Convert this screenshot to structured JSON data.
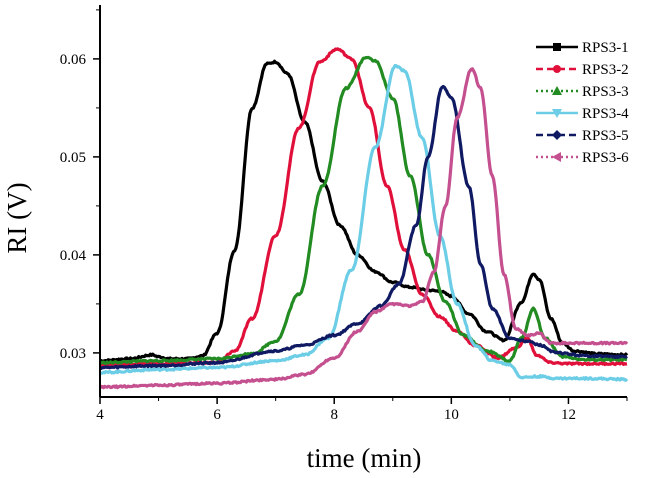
{
  "chart_data": {
    "type": "line",
    "title": "",
    "xlabel": "time (min)",
    "ylabel": "RI (V)",
    "xlim": [
      4,
      13
    ],
    "ylim": [
      0.0255,
      0.0655
    ],
    "xticks": [
      4,
      6,
      8,
      10,
      12
    ],
    "xtick_labels": [
      "4",
      "6",
      "8",
      "10",
      "12"
    ],
    "yticks": [
      0.03,
      0.04,
      0.05,
      0.06
    ],
    "ytick_labels": [
      "0.03",
      "0.04",
      "0.05",
      "0.06"
    ],
    "grid": false,
    "legend_position": "top-right",
    "series": [
      {
        "name": "RPS3-1",
        "color": "#000000",
        "dash": "solid",
        "marker": "square",
        "x": [
          4,
          4.5,
          4.9,
          5.0,
          5.2,
          5.5,
          5.75,
          6.0,
          6.3,
          6.6,
          6.85,
          7.0,
          7.2,
          7.5,
          7.8,
          8.1,
          8.4,
          8.7,
          9.0,
          9.3,
          9.6,
          9.8,
          10.0,
          10.3,
          10.6,
          10.9,
          11.2,
          11.4,
          11.5,
          11.7,
          11.9,
          12.1,
          12.5,
          13
        ],
        "y": [
          0.0292,
          0.0294,
          0.0298,
          0.0296,
          0.0294,
          0.0294,
          0.0297,
          0.032,
          0.0405,
          0.055,
          0.0595,
          0.0597,
          0.0585,
          0.0535,
          0.0475,
          0.043,
          0.04,
          0.0383,
          0.0372,
          0.0367,
          0.0364,
          0.0363,
          0.0358,
          0.034,
          0.0322,
          0.0313,
          0.0352,
          0.0381,
          0.0375,
          0.0335,
          0.031,
          0.0302,
          0.0299,
          0.0298
        ]
      },
      {
        "name": "RPS3-2",
        "color": "#e0103a",
        "dash": "dashed",
        "marker": "circle",
        "x": [
          4,
          5,
          6.0,
          6.3,
          6.6,
          7.0,
          7.4,
          7.75,
          8.05,
          8.3,
          8.6,
          8.9,
          9.2,
          9.5,
          9.8,
          10.1,
          10.4,
          10.8,
          11.1,
          11.3,
          11.45,
          11.7,
          12.0,
          12.5,
          13
        ],
        "y": [
          0.0288,
          0.0289,
          0.029,
          0.0302,
          0.0335,
          0.042,
          0.053,
          0.0597,
          0.061,
          0.06,
          0.055,
          0.047,
          0.0405,
          0.036,
          0.0337,
          0.0322,
          0.0308,
          0.0295,
          0.0305,
          0.0315,
          0.0298,
          0.029,
          0.0289,
          0.0289,
          0.0289
        ]
      },
      {
        "name": "RPS3-3",
        "color": "#228b22",
        "dash": "dotted",
        "marker": "triangle",
        "x": [
          4,
          5,
          6,
          6.6,
          7.0,
          7.4,
          7.8,
          8.2,
          8.55,
          8.7,
          9.0,
          9.3,
          9.6,
          9.9,
          10.2,
          10.6,
          11.0,
          11.2,
          11.4,
          11.6,
          11.9,
          12.3,
          13
        ],
        "y": [
          0.029,
          0.0292,
          0.0294,
          0.0299,
          0.0312,
          0.036,
          0.047,
          0.057,
          0.0602,
          0.0598,
          0.056,
          0.048,
          0.04,
          0.0352,
          0.0318,
          0.0302,
          0.0292,
          0.0315,
          0.0345,
          0.0315,
          0.0296,
          0.0293,
          0.0293
        ]
      },
      {
        "name": "RPS3-4",
        "color": "#6ccde6",
        "dash": "solid",
        "marker": "triangle-down",
        "x": [
          4,
          5,
          6,
          7,
          7.5,
          7.9,
          8.3,
          8.7,
          9.05,
          9.2,
          9.5,
          9.8,
          10.1,
          10.4,
          10.7,
          11.0,
          11.2,
          11.5,
          11.8,
          12.3,
          13
        ],
        "y": [
          0.028,
          0.0283,
          0.0285,
          0.0292,
          0.0298,
          0.0315,
          0.0385,
          0.051,
          0.0593,
          0.0588,
          0.052,
          0.042,
          0.035,
          0.0308,
          0.0292,
          0.0288,
          0.0275,
          0.0276,
          0.0274,
          0.0274,
          0.0273
        ]
      },
      {
        "name": "RPS3-5",
        "color": "#0f1a63",
        "dash": "dashed",
        "marker": "diamond",
        "x": [
          4,
          5,
          6,
          7,
          7.5,
          8.0,
          8.4,
          8.8,
          9.1,
          9.4,
          9.6,
          9.85,
          10.0,
          10.3,
          10.5,
          10.7,
          11.0,
          11.3,
          11.5,
          11.8,
          12.3,
          13
        ],
        "y": [
          0.0285,
          0.0287,
          0.029,
          0.0302,
          0.0308,
          0.0318,
          0.033,
          0.0348,
          0.037,
          0.043,
          0.05,
          0.0572,
          0.056,
          0.047,
          0.039,
          0.0345,
          0.0315,
          0.0312,
          0.0308,
          0.03,
          0.0297,
          0.0296
        ]
      },
      {
        "name": "RPS3-6",
        "color": "#c4508f",
        "dash": "dotted",
        "marker": "triangle-left",
        "x": [
          4,
          5,
          6,
          7,
          7.5,
          8.0,
          8.4,
          8.7,
          9.0,
          9.3,
          9.5,
          9.7,
          9.9,
          10.1,
          10.35,
          10.5,
          10.7,
          10.9,
          11.1,
          11.3,
          11.5,
          11.7,
          12.2,
          13
        ],
        "y": [
          0.0265,
          0.0267,
          0.0269,
          0.0273,
          0.0278,
          0.0295,
          0.0322,
          0.0342,
          0.035,
          0.0348,
          0.0352,
          0.0382,
          0.045,
          0.054,
          0.059,
          0.057,
          0.048,
          0.038,
          0.0325,
          0.0318,
          0.032,
          0.031,
          0.031,
          0.031
        ]
      }
    ]
  }
}
